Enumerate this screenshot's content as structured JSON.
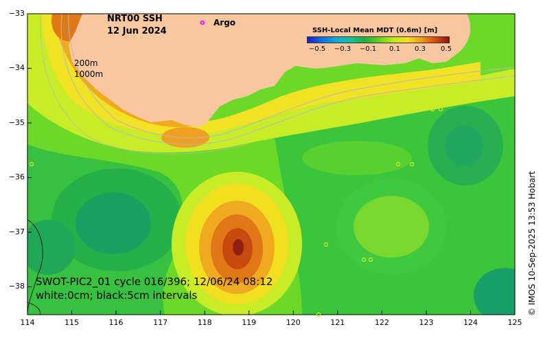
{
  "title": {
    "line1": "NRT00 SSH",
    "line2": "12 Jun 2024"
  },
  "legend": {
    "argo_marker": "o",
    "argo_label": "Argo"
  },
  "colorbar": {
    "title": "SSH-Local Mean MDT (0.6m) [m]",
    "ticks": [
      "−0.5",
      "−0.3",
      "−0.1",
      "0.1",
      "0.3",
      "0.5"
    ]
  },
  "depth_labels": [
    "200m",
    "1000m"
  ],
  "axes": {
    "x_ticks": [
      "114",
      "115",
      "116",
      "117",
      "118",
      "119",
      "120",
      "121",
      "122",
      "123",
      "124",
      "125"
    ],
    "y_ticks": [
      "−33",
      "−34",
      "−35",
      "−36",
      "−37",
      "−38"
    ]
  },
  "swath_info": {
    "line1": "SWOT-PIC2_01 cycle 016/396; 12/06/24 08:12",
    "line2": "white:0cm; black:5cm intervals"
  },
  "credit": "© IMOS 10-Sep-2025 13:53 Hobart",
  "colors": {
    "land": "#fac8a0",
    "ocean_green": "#40c838",
    "eddy_core": "#b03010",
    "argo": "#ff00ff"
  }
}
